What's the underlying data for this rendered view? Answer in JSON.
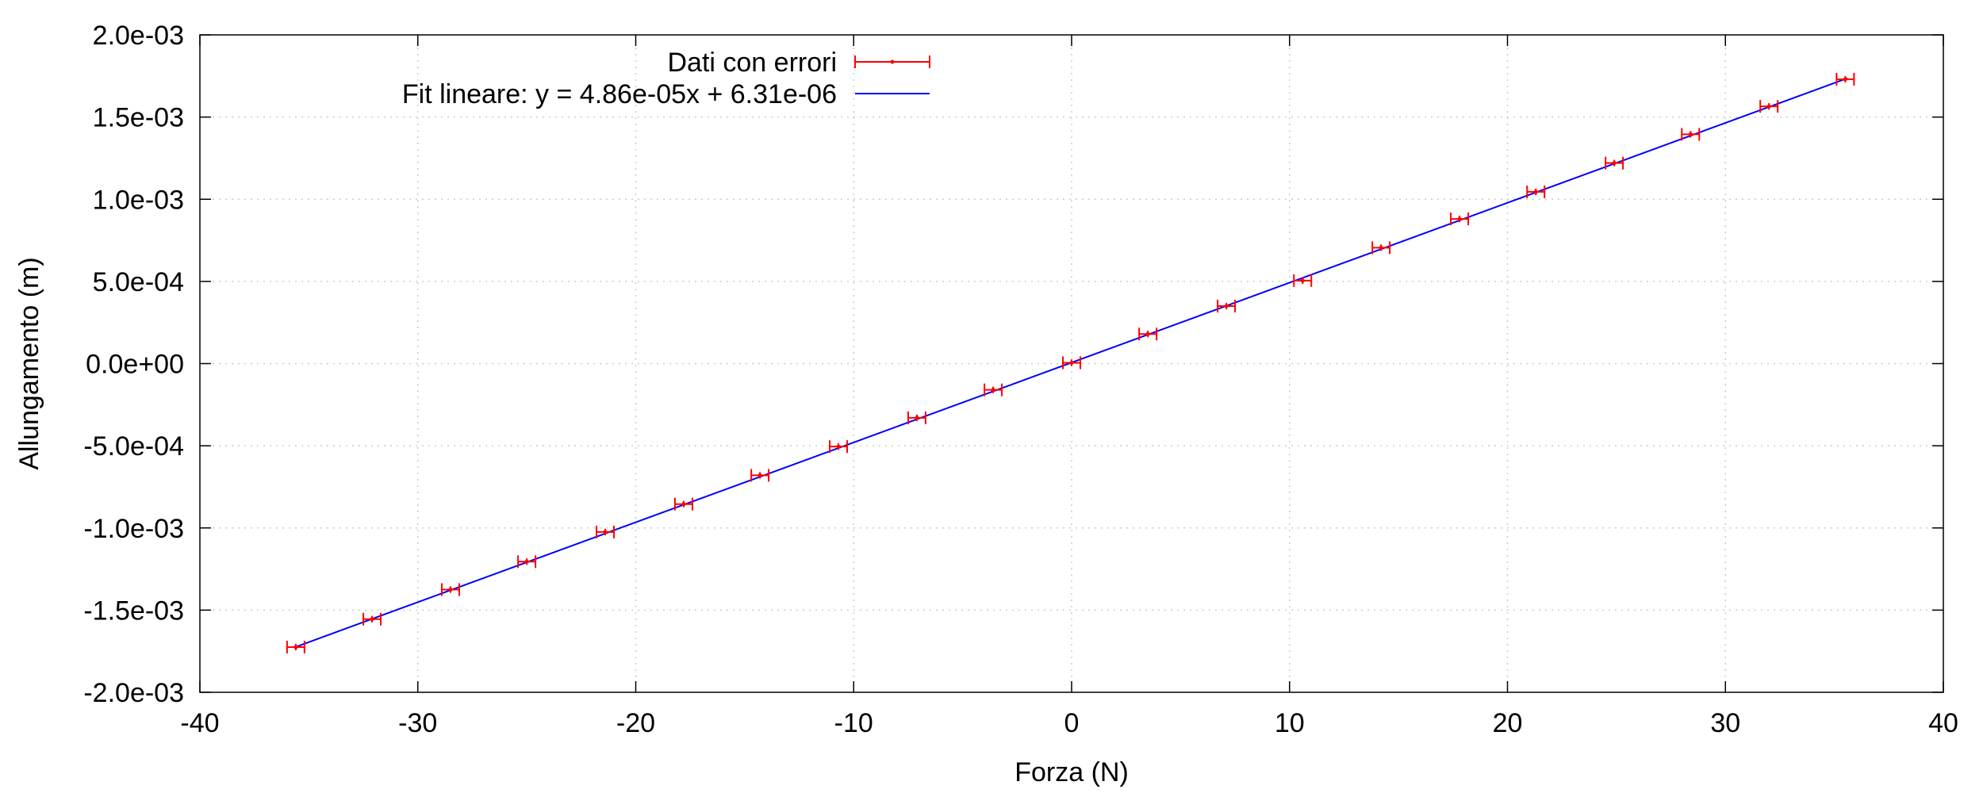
{
  "chart_data": {
    "type": "scatter",
    "title": "",
    "xlabel": "Forza (N)",
    "ylabel": "Allungamento (m)",
    "xlim": [
      -40,
      40
    ],
    "ylim": [
      -0.002,
      0.002
    ],
    "x_ticks": [
      -40,
      -30,
      -20,
      -10,
      0,
      10,
      20,
      30,
      40
    ],
    "x_tick_labels": [
      "-40",
      "-30",
      "-20",
      "-10",
      "0",
      "10",
      "20",
      "30",
      "40"
    ],
    "y_ticks": [
      -0.002,
      -0.0015,
      -0.001,
      -0.0005,
      0,
      0.0005,
      0.001,
      0.0015,
      0.002
    ],
    "y_tick_labels": [
      "-2.0e-03",
      "-1.5e-03",
      "-1.0e-03",
      "-5.0e-04",
      "0.0e+00",
      "5.0e-04",
      "1.0e-03",
      "1.5e-03",
      "2.0e-03"
    ],
    "grid": true,
    "legend_position": "top-left",
    "colors": {
      "data": "#ff0000",
      "fit": "#0000ff",
      "grid": "#cccccc",
      "axis": "#000000"
    },
    "series": [
      {
        "name": "Dati con errori",
        "kind": "errorbars",
        "x": [
          -35.6,
          -32.1,
          -28.5,
          -25.0,
          -21.4,
          -17.8,
          -14.3,
          -10.7,
          -7.1,
          -3.6,
          0.0,
          3.5,
          7.1,
          10.6,
          14.2,
          17.8,
          21.3,
          24.9,
          28.4,
          32.0,
          35.5
        ],
        "y": [
          -0.001725,
          -0.001555,
          -0.001375,
          -0.001205,
          -0.001025,
          -0.000855,
          -0.00068,
          -0.000505,
          -0.00033,
          -0.00016,
          5e-06,
          0.00018,
          0.00035,
          0.000505,
          0.000705,
          0.00088,
          0.001045,
          0.00122,
          0.001395,
          0.001565,
          0.00173
        ],
        "x_err": 0.4,
        "y_err": 2e-05
      },
      {
        "name": "Fit lineare: y = 4.86e-05x + 6.31e-06",
        "kind": "line",
        "slope": 4.86e-05,
        "intercept": 6.31e-06,
        "x_range": [
          -35.6,
          35.6
        ]
      }
    ]
  }
}
